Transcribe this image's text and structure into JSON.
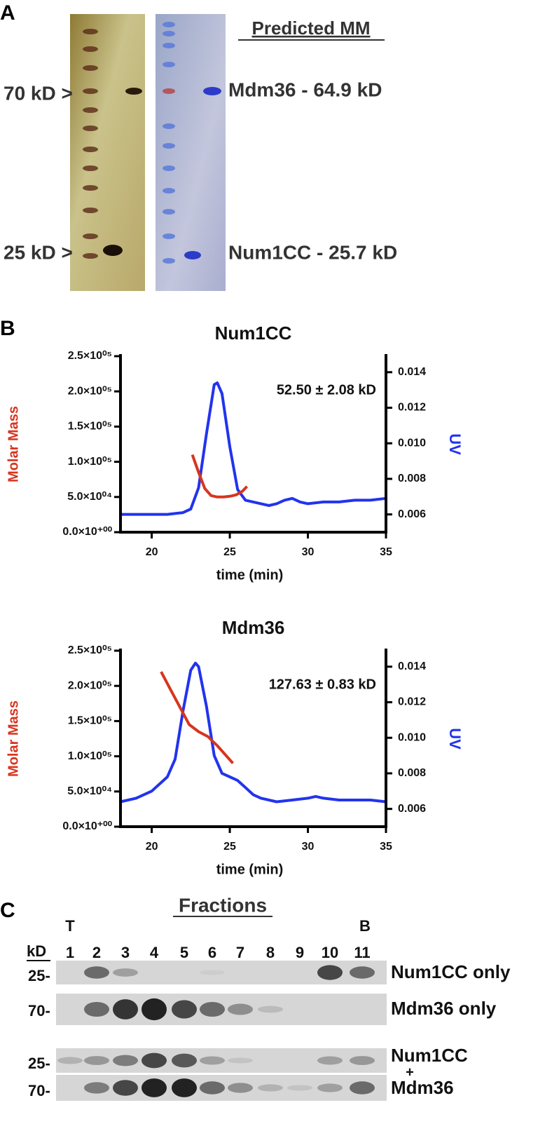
{
  "panel_a": {
    "label": "A",
    "heading": "Predicted MM",
    "markers": [
      "70 kD >",
      "25 kD >"
    ],
    "proteins": [
      "Mdm36 - 64.9 kD",
      "Num1CC - 25.7 kD"
    ]
  },
  "chart_data": [
    {
      "type": "line",
      "panel_label": "B",
      "title": "Num1CC",
      "annotation": "52.50 ± 2.08 kD",
      "xlabel": "time (min)",
      "ylabel": "Molar Mass",
      "ylabel_color": "#d7351f",
      "y2label": "UV",
      "y2label_color": "#2233ee",
      "xlim": [
        18,
        35
      ],
      "xticks": [
        20,
        25,
        30,
        35
      ],
      "ylim": [
        0,
        250000
      ],
      "yticks": [
        {
          "value": 0,
          "label": "0.0×10⁺⁰⁰"
        },
        {
          "value": 50000,
          "label": "5.0×10⁰⁴"
        },
        {
          "value": 100000,
          "label": "1.0×10⁰⁵"
        },
        {
          "value": 150000,
          "label": "1.5×10⁰⁵"
        },
        {
          "value": 200000,
          "label": "2.0×10⁰⁵"
        },
        {
          "value": 250000,
          "label": "2.5×10⁰⁵"
        }
      ],
      "y2lim": [
        0.005,
        0.0149
      ],
      "y2ticks": [
        0.006,
        0.008,
        {
          "value": 0.01,
          "label": "0.010"
        },
        0.012,
        0.014
      ],
      "series": [
        {
          "color": "#2233ee",
          "axis": "y2",
          "x": [
            18,
            19,
            20,
            21,
            22,
            22.5,
            23,
            23.5,
            24,
            24.2,
            24.5,
            25,
            25.5,
            26,
            26.5,
            27,
            27.5,
            28,
            28.5,
            29,
            29.5,
            30,
            31,
            32,
            33,
            34,
            35
          ],
          "values": [
            0.006,
            0.006,
            0.006,
            0.006,
            0.0061,
            0.0063,
            0.0075,
            0.0105,
            0.0133,
            0.0134,
            0.0128,
            0.0098,
            0.0074,
            0.0068,
            0.0067,
            0.0066,
            0.0065,
            0.0066,
            0.0068,
            0.0069,
            0.0067,
            0.0066,
            0.0067,
            0.0067,
            0.0068,
            0.0068,
            0.0069
          ]
        },
        {
          "color": "#d7351f",
          "x": [
            22.6,
            23.0,
            23.4,
            23.8,
            24.2,
            24.6,
            25.0,
            25.4,
            25.8,
            26.1
          ],
          "values": [
            110000,
            85000,
            62000,
            52000,
            50000,
            50000,
            51000,
            53000,
            58000,
            65000
          ]
        }
      ]
    },
    {
      "type": "line",
      "title": "Mdm36",
      "annotation": "127.63 ± 0.83 kD",
      "xlabel": "time (min)",
      "ylabel": "Molar Mass",
      "ylabel_color": "#d7351f",
      "y2label": "UV",
      "y2label_color": "#2233ee",
      "xlim": [
        18,
        35
      ],
      "xticks": [
        20,
        25,
        30,
        35
      ],
      "ylim": [
        0,
        250000
      ],
      "yticks": [
        {
          "value": 0,
          "label": "0.0×10⁺⁰⁰"
        },
        {
          "value": 50000,
          "label": "5.0×10⁰⁴"
        },
        {
          "value": 100000,
          "label": "1.0×10⁰⁵"
        },
        {
          "value": 150000,
          "label": "1.5×10⁰⁵"
        },
        {
          "value": 200000,
          "label": "2.0×10⁰⁵"
        },
        {
          "value": 250000,
          "label": "2.5×10⁰⁵"
        }
      ],
      "y2lim": [
        0.005,
        0.0149
      ],
      "y2ticks": [
        0.006,
        0.008,
        {
          "value": 0.01,
          "label": "0.010"
        },
        0.012,
        0.014
      ],
      "series": [
        {
          "color": "#2233ee",
          "axis": "y2",
          "x": [
            18,
            19,
            20,
            21,
            21.5,
            22,
            22.5,
            22.8,
            23,
            23.5,
            24,
            24.5,
            25,
            25.5,
            26,
            26.5,
            27,
            28,
            29,
            30,
            30.5,
            31,
            32,
            33,
            34,
            35
          ],
          "values": [
            0.0064,
            0.0066,
            0.007,
            0.0078,
            0.0088,
            0.0115,
            0.0138,
            0.0142,
            0.014,
            0.0118,
            0.009,
            0.008,
            0.0078,
            0.0076,
            0.0072,
            0.0068,
            0.0066,
            0.0064,
            0.0065,
            0.0066,
            0.0067,
            0.0066,
            0.0065,
            0.0065,
            0.0065,
            0.0064
          ]
        },
        {
          "color": "#d7351f",
          "x": [
            20.6,
            21.2,
            21.8,
            22.4,
            23.0,
            23.6,
            24.2,
            24.8,
            25.2
          ],
          "values": [
            220000,
            195000,
            170000,
            145000,
            135000,
            128000,
            115000,
            100000,
            90000
          ]
        }
      ]
    }
  ],
  "panel_c": {
    "label": "C",
    "title": "Fractions",
    "top_label": "T",
    "bottom_label": "B",
    "unit": "kD",
    "lanes": [
      "1",
      "2",
      "3",
      "4",
      "5",
      "6",
      "7",
      "8",
      "9",
      "10",
      "11"
    ],
    "rows": [
      {
        "marker": "25-",
        "label": "Num1CC only"
      },
      {
        "marker": "70-",
        "label": "Mdm36 only"
      },
      {
        "marker": "25-"
      },
      {
        "marker": "70-"
      }
    ],
    "combined_label": [
      "Num1CC",
      "+",
      "Mdm36"
    ]
  }
}
